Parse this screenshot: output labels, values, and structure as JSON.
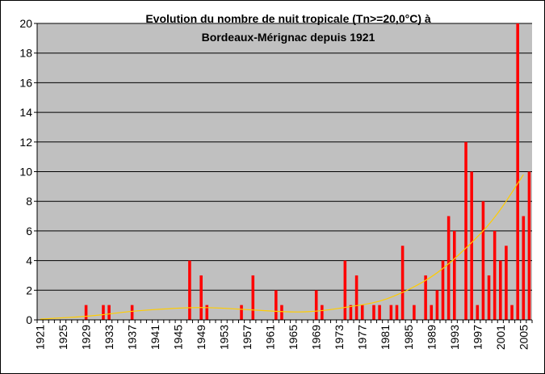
{
  "chart_data": {
    "type": "bar",
    "title_line1": "Evolution du nombre de nuit tropicale (Tn>=20,0°C)  à",
    "title_line2": "Bordeaux-Mérignac depuis 1921",
    "xlabel": "",
    "ylabel": "",
    "ylim": [
      0,
      20
    ],
    "y_ticks": [
      0,
      2,
      4,
      6,
      8,
      10,
      12,
      14,
      16,
      18,
      20
    ],
    "x_tick_labels": [
      "1921",
      "1925",
      "1929",
      "1933",
      "1937",
      "1941",
      "1945",
      "1949",
      "1953",
      "1957",
      "1961",
      "1965",
      "1969",
      "1973",
      "1977",
      "1981",
      "1985",
      "1989",
      "1993",
      "1997",
      "2001",
      "2005"
    ],
    "grid": "horizontal",
    "legend": "none",
    "x_start": 1921,
    "x_end": 2005,
    "values": [
      0,
      0,
      0,
      0,
      0,
      0,
      0,
      0,
      1,
      0,
      0,
      1,
      1,
      0,
      0,
      0,
      1,
      0,
      0,
      0,
      0,
      0,
      0,
      0,
      0,
      0,
      4,
      0,
      3,
      1,
      0,
      0,
      0,
      0,
      0,
      1,
      0,
      3,
      0,
      0,
      0,
      2,
      1,
      0,
      0,
      0,
      0,
      0,
      2,
      1,
      0,
      0,
      0,
      4,
      1,
      3,
      1,
      0,
      1,
      1,
      0,
      1,
      1,
      5,
      0,
      1,
      0,
      3,
      1,
      2,
      4,
      7,
      6,
      0,
      12,
      10,
      1,
      8,
      3,
      6,
      4,
      5,
      1,
      20,
      7,
      10
    ],
    "trend": [
      [
        1921,
        0.05
      ],
      [
        1930,
        0.25
      ],
      [
        1937,
        0.6
      ],
      [
        1945,
        0.8
      ],
      [
        1950,
        0.85
      ],
      [
        1957,
        0.7
      ],
      [
        1965,
        0.5
      ],
      [
        1970,
        0.6
      ],
      [
        1975,
        0.9
      ],
      [
        1980,
        1.2
      ],
      [
        1985,
        2.0
      ],
      [
        1990,
        3.1
      ],
      [
        1995,
        4.8
      ],
      [
        2000,
        6.8
      ],
      [
        2005,
        9.8
      ]
    ],
    "colors": {
      "plot_background": "#c0c0c0",
      "bars": "#ff0000",
      "trend": "#ffcc00",
      "grid": "#000000"
    }
  }
}
